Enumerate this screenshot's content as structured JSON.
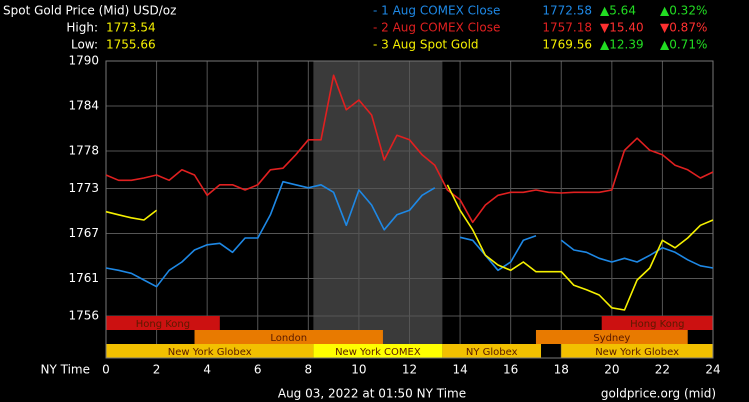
{
  "chart_data": {
    "type": "line",
    "title": "Spot Gold Price (Mid) USD/oz",
    "high_label": "High:",
    "high": "1773.54",
    "low_label": "Low:",
    "low": "1755.66",
    "x_axis_label": "NY Time",
    "timestamp": "Aug 03, 2022 at 01:50 NY Time",
    "source": "goldprice.org (mid)",
    "background": "#000000",
    "grid": true,
    "grid_color": "#555555",
    "xlim": [
      0,
      24
    ],
    "xticks": [
      0,
      2,
      4,
      6,
      8,
      10,
      12,
      14,
      16,
      18,
      20,
      22,
      24
    ],
    "ylim": [
      1750.4,
      1790
    ],
    "yticks": [
      1756,
      1761,
      1767,
      1773,
      1778,
      1784,
      1790
    ],
    "highlight": {
      "start": 8.2,
      "end": 13.3,
      "color": "#3a3a3a"
    },
    "x": [
      0,
      0.5,
      1,
      1.5,
      2,
      2.5,
      3,
      3.5,
      4,
      4.5,
      5,
      5.5,
      6,
      6.5,
      7,
      7.5,
      8,
      8.5,
      9,
      9.5,
      10,
      10.5,
      11,
      11.5,
      12,
      12.5,
      13,
      13.5,
      14,
      14.5,
      15,
      15.5,
      16,
      16.5,
      17,
      17.5,
      18,
      18.5,
      19,
      19.5,
      20,
      20.5,
      21,
      21.5,
      22,
      22.5,
      23,
      23.5,
      24
    ],
    "series": [
      {
        "name": "- 1 Aug COMEX Close",
        "color": "#1e88e5",
        "last": "1772.58",
        "change": "▲5.64",
        "change_pct": "▲0.32%",
        "values": [
          1762.4,
          1762.1,
          1761.7,
          1760.8,
          1759.9,
          1762.1,
          1763.2,
          1764.8,
          1765.5,
          1765.7,
          1764.5,
          1766.4,
          1766.4,
          1769.5,
          1773.9,
          1773.5,
          1773.1,
          1773.5,
          1772.5,
          1768.1,
          1772.8,
          1770.8,
          1767.5,
          1769.5,
          1770.1,
          1772.1,
          1773.1,
          null,
          1766.5,
          1766.1,
          1764.1,
          1762.1,
          1763.2,
          1766.1,
          1766.7,
          null,
          1766.1,
          1764.8,
          1764.5,
          1763.7,
          1763.2,
          1763.7,
          1763.2,
          1764.1,
          1765.1,
          1764.5,
          1763.5,
          1762.7,
          1762.4
        ]
      },
      {
        "name": "- 2 Aug COMEX Close",
        "color": "#e02020",
        "last": "1757.18",
        "change": "▼15.40",
        "change_pct": "▼0.87%",
        "values": [
          1774.8,
          1774.1,
          1774.1,
          1774.4,
          1774.8,
          1774.1,
          1775.5,
          1774.8,
          1772.1,
          1773.5,
          1773.5,
          1772.8,
          1773.5,
          1775.5,
          1775.7,
          1777.5,
          1779.5,
          1779.5,
          1788.1,
          1783.5,
          1784.8,
          1782.8,
          1776.8,
          1780.1,
          1779.5,
          1777.5,
          1776.1,
          1772.8,
          1771.5,
          1768.5,
          1770.8,
          1772.1,
          1772.5,
          1772.5,
          1772.8,
          1772.5,
          1772.4,
          1772.5,
          1772.5,
          1772.5,
          1772.8,
          1778.1,
          1779.7,
          1778.1,
          1777.5,
          1776.1,
          1775.5,
          1774.4,
          1775.2
        ]
      },
      {
        "name": "- 3 Aug Spot Gold",
        "color": "#f5f000",
        "last": "1769.56",
        "change": "▲12.39",
        "change_pct": "▲0.71%",
        "values": [
          1769.9,
          1769.5,
          1769.1,
          1768.8,
          1770.1,
          null,
          null,
          null,
          null,
          null,
          null,
          null,
          null,
          null,
          null,
          null,
          null,
          null,
          null,
          null,
          null,
          null,
          null,
          null,
          null,
          null,
          null,
          1773.5,
          1770.1,
          1767.5,
          1764.1,
          1762.8,
          1762.1,
          1763.2,
          1761.9,
          1761.9,
          1761.9,
          1760.1,
          1759.5,
          1758.8,
          1757.1,
          1756.8,
          1760.8,
          1762.4,
          1766.1,
          1765.1,
          1766.4,
          1768.1,
          1768.8
        ]
      }
    ],
    "session_rows": [
      {
        "sessions": [
          {
            "name": "Hong Kong",
            "start": 0,
            "end": 4.5,
            "color": "#cc1111"
          },
          {
            "name": "Hong Kong",
            "start": 19.6,
            "end": 24,
            "color": "#cc1111"
          }
        ]
      },
      {
        "sessions": [
          {
            "name": "London",
            "start": 3.5,
            "end": 10.95,
            "color": "#e87a00"
          },
          {
            "name": "Sydney",
            "start": 17,
            "end": 23,
            "color": "#e87a00"
          }
        ]
      },
      {
        "sessions": [
          {
            "name": "New York Globex",
            "start": 0,
            "end": 8.2,
            "color": "#f2c000"
          },
          {
            "name": "New York COMEX",
            "start": 8.2,
            "end": 13.3,
            "color": "#ffff00"
          },
          {
            "name": "NY Globex",
            "start": 13.3,
            "end": 17.2,
            "color": "#f2c000"
          },
          {
            "name": "New York Globex",
            "start": 18,
            "end": 24,
            "color": "#f2c000"
          }
        ]
      }
    ]
  }
}
